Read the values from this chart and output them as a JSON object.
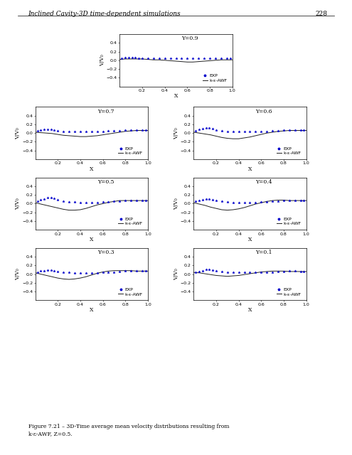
{
  "title_header": "Inclined Cavity-3D time-dependent simulations",
  "page_number": "228",
  "figure_caption": "Figure 7.21 – 3D-Time average mean velocity distributions resulting from\nk-ε-AWF, Z=0.5.",
  "ylabel": "V/V₀",
  "xlabel": "X",
  "panels": [
    {
      "label": "Y=0.9",
      "exp_x": [
        0.02,
        0.05,
        0.08,
        0.11,
        0.14,
        0.17,
        0.2,
        0.25,
        0.3,
        0.35,
        0.4,
        0.45,
        0.5,
        0.55,
        0.6,
        0.65,
        0.7,
        0.75,
        0.8,
        0.85,
        0.9,
        0.95,
        0.98
      ],
      "exp_y": [
        0.04,
        0.06,
        0.07,
        0.07,
        0.06,
        0.05,
        0.04,
        0.04,
        0.04,
        0.04,
        0.04,
        0.04,
        0.04,
        0.04,
        0.04,
        0.04,
        0.04,
        0.04,
        0.04,
        0.04,
        0.04,
        0.04,
        0.04
      ],
      "line_x": [
        0.0,
        0.05,
        0.1,
        0.15,
        0.2,
        0.25,
        0.3,
        0.35,
        0.4,
        0.45,
        0.5,
        0.55,
        0.6,
        0.65,
        0.7,
        0.75,
        0.8,
        0.85,
        0.9,
        0.95,
        1.0
      ],
      "line_y": [
        0.02,
        0.03,
        0.03,
        0.03,
        0.03,
        0.02,
        0.01,
        0.01,
        0.0,
        -0.01,
        -0.02,
        -0.03,
        -0.04,
        -0.04,
        -0.03,
        -0.02,
        -0.01,
        0.0,
        0.01,
        0.01,
        0.01
      ]
    },
    {
      "label": "Y=0.7",
      "exp_x": [
        0.02,
        0.05,
        0.08,
        0.11,
        0.14,
        0.17,
        0.2,
        0.25,
        0.3,
        0.35,
        0.4,
        0.45,
        0.5,
        0.55,
        0.6,
        0.65,
        0.7,
        0.75,
        0.8,
        0.85,
        0.9,
        0.95,
        0.98
      ],
      "exp_y": [
        0.05,
        0.07,
        0.08,
        0.09,
        0.09,
        0.07,
        0.05,
        0.04,
        0.04,
        0.04,
        0.04,
        0.04,
        0.04,
        0.04,
        0.04,
        0.05,
        0.05,
        0.06,
        0.07,
        0.07,
        0.07,
        0.07,
        0.07
      ],
      "line_x": [
        0.0,
        0.05,
        0.1,
        0.15,
        0.2,
        0.25,
        0.3,
        0.35,
        0.4,
        0.45,
        0.5,
        0.55,
        0.6,
        0.65,
        0.7,
        0.75,
        0.8,
        0.85,
        0.9,
        0.95,
        1.0
      ],
      "line_y": [
        0.02,
        0.01,
        0.0,
        -0.01,
        -0.03,
        -0.05,
        -0.06,
        -0.07,
        -0.08,
        -0.08,
        -0.07,
        -0.06,
        -0.04,
        -0.02,
        0.0,
        0.02,
        0.04,
        0.05,
        0.06,
        0.06,
        0.06
      ]
    },
    {
      "label": "Y=0.6",
      "exp_x": [
        0.02,
        0.05,
        0.08,
        0.11,
        0.14,
        0.17,
        0.2,
        0.25,
        0.3,
        0.35,
        0.4,
        0.45,
        0.5,
        0.55,
        0.6,
        0.65,
        0.7,
        0.75,
        0.8,
        0.85,
        0.9,
        0.95,
        0.98
      ],
      "exp_y": [
        0.05,
        0.08,
        0.1,
        0.12,
        0.12,
        0.1,
        0.07,
        0.05,
        0.04,
        0.04,
        0.03,
        0.03,
        0.03,
        0.04,
        0.04,
        0.04,
        0.05,
        0.06,
        0.07,
        0.07,
        0.07,
        0.07,
        0.07
      ],
      "line_x": [
        0.0,
        0.05,
        0.1,
        0.15,
        0.2,
        0.25,
        0.3,
        0.35,
        0.4,
        0.45,
        0.5,
        0.55,
        0.6,
        0.65,
        0.7,
        0.75,
        0.8,
        0.85,
        0.9,
        0.95,
        1.0
      ],
      "line_y": [
        0.02,
        0.0,
        -0.02,
        -0.04,
        -0.07,
        -0.1,
        -0.12,
        -0.13,
        -0.13,
        -0.11,
        -0.09,
        -0.06,
        -0.03,
        0.0,
        0.02,
        0.04,
        0.05,
        0.06,
        0.06,
        0.06,
        0.06
      ]
    },
    {
      "label": "Y=0.5",
      "exp_x": [
        0.02,
        0.05,
        0.08,
        0.11,
        0.14,
        0.17,
        0.2,
        0.25,
        0.3,
        0.35,
        0.4,
        0.45,
        0.5,
        0.55,
        0.6,
        0.65,
        0.7,
        0.75,
        0.8,
        0.85,
        0.9,
        0.95,
        0.98
      ],
      "exp_y": [
        0.05,
        0.08,
        0.11,
        0.14,
        0.14,
        0.12,
        0.09,
        0.06,
        0.04,
        0.04,
        0.03,
        0.03,
        0.03,
        0.03,
        0.04,
        0.04,
        0.05,
        0.06,
        0.07,
        0.07,
        0.07,
        0.07,
        0.07
      ],
      "line_x": [
        0.0,
        0.05,
        0.1,
        0.15,
        0.2,
        0.25,
        0.3,
        0.35,
        0.4,
        0.45,
        0.5,
        0.55,
        0.6,
        0.65,
        0.7,
        0.75,
        0.8,
        0.85,
        0.9,
        0.95,
        1.0
      ],
      "line_y": [
        0.02,
        -0.01,
        -0.04,
        -0.07,
        -0.1,
        -0.13,
        -0.15,
        -0.15,
        -0.14,
        -0.11,
        -0.07,
        -0.03,
        0.0,
        0.03,
        0.05,
        0.07,
        0.07,
        0.07,
        0.07,
        0.07,
        0.07
      ]
    },
    {
      "label": "Y=0.4",
      "exp_x": [
        0.02,
        0.05,
        0.08,
        0.11,
        0.14,
        0.17,
        0.2,
        0.25,
        0.3,
        0.35,
        0.4,
        0.45,
        0.5,
        0.55,
        0.6,
        0.65,
        0.7,
        0.75,
        0.8,
        0.85,
        0.9,
        0.95,
        0.98
      ],
      "exp_y": [
        0.05,
        0.07,
        0.09,
        0.11,
        0.11,
        0.09,
        0.07,
        0.05,
        0.04,
        0.03,
        0.03,
        0.03,
        0.03,
        0.03,
        0.04,
        0.04,
        0.05,
        0.06,
        0.07,
        0.07,
        0.07,
        0.07,
        0.07
      ],
      "line_x": [
        0.0,
        0.05,
        0.1,
        0.15,
        0.2,
        0.25,
        0.3,
        0.35,
        0.4,
        0.45,
        0.5,
        0.55,
        0.6,
        0.65,
        0.7,
        0.75,
        0.8,
        0.85,
        0.9,
        0.95,
        1.0
      ],
      "line_y": [
        0.02,
        -0.01,
        -0.04,
        -0.08,
        -0.11,
        -0.14,
        -0.15,
        -0.14,
        -0.12,
        -0.09,
        -0.05,
        -0.01,
        0.02,
        0.05,
        0.07,
        0.08,
        0.08,
        0.07,
        0.07,
        0.07,
        0.07
      ]
    },
    {
      "label": "Y=0.3",
      "exp_x": [
        0.02,
        0.05,
        0.08,
        0.11,
        0.14,
        0.17,
        0.2,
        0.25,
        0.3,
        0.35,
        0.4,
        0.45,
        0.5,
        0.55,
        0.6,
        0.65,
        0.7,
        0.75,
        0.8,
        0.85,
        0.9,
        0.95,
        0.98
      ],
      "exp_y": [
        0.05,
        0.07,
        0.08,
        0.09,
        0.09,
        0.07,
        0.06,
        0.04,
        0.04,
        0.03,
        0.03,
        0.03,
        0.03,
        0.03,
        0.04,
        0.04,
        0.05,
        0.06,
        0.07,
        0.07,
        0.07,
        0.07,
        0.07
      ],
      "line_x": [
        0.0,
        0.05,
        0.1,
        0.15,
        0.2,
        0.25,
        0.3,
        0.35,
        0.4,
        0.45,
        0.5,
        0.55,
        0.6,
        0.65,
        0.7,
        0.75,
        0.8,
        0.85,
        0.9,
        0.95,
        1.0
      ],
      "line_y": [
        0.03,
        0.0,
        -0.03,
        -0.06,
        -0.09,
        -0.11,
        -0.12,
        -0.11,
        -0.09,
        -0.06,
        -0.02,
        0.02,
        0.05,
        0.07,
        0.08,
        0.08,
        0.08,
        0.08,
        0.07,
        0.07,
        0.07
      ]
    },
    {
      "label": "Y=0.1",
      "exp_x": [
        0.02,
        0.05,
        0.08,
        0.11,
        0.14,
        0.17,
        0.2,
        0.25,
        0.3,
        0.35,
        0.4,
        0.45,
        0.5,
        0.55,
        0.6,
        0.65,
        0.7,
        0.75,
        0.8,
        0.85,
        0.9,
        0.95,
        0.98
      ],
      "exp_y": [
        0.04,
        0.06,
        0.08,
        0.1,
        0.1,
        0.09,
        0.08,
        0.06,
        0.05,
        0.04,
        0.04,
        0.04,
        0.04,
        0.04,
        0.04,
        0.05,
        0.05,
        0.06,
        0.06,
        0.07,
        0.07,
        0.06,
        0.06
      ],
      "line_x": [
        0.0,
        0.05,
        0.1,
        0.15,
        0.2,
        0.25,
        0.3,
        0.35,
        0.4,
        0.45,
        0.5,
        0.55,
        0.6,
        0.65,
        0.7,
        0.75,
        0.8,
        0.85,
        0.9,
        0.95,
        1.0
      ],
      "line_y": [
        0.04,
        0.03,
        0.01,
        -0.01,
        -0.03,
        -0.04,
        -0.05,
        -0.04,
        -0.03,
        -0.01,
        0.01,
        0.03,
        0.05,
        0.06,
        0.07,
        0.07,
        0.07,
        0.06,
        0.06,
        0.06,
        0.06
      ]
    }
  ],
  "xlim": [
    0,
    1
  ],
  "ylim": [
    -0.6,
    0.6
  ],
  "yticks": [
    -0.4,
    -0.2,
    0.0,
    0.2,
    0.4
  ],
  "xticks": [
    0.2,
    0.4,
    0.6,
    0.8,
    1.0
  ],
  "exp_color": "#0000cc",
  "line_color": "#222222",
  "exp_marker": "*",
  "exp_markersize": 2.5,
  "legend_exp": "EXP",
  "legend_line": "k-ε-AWF",
  "tick_fontsize": 4.5,
  "label_fontsize": 5.5,
  "panel_label_fontsize": 5.5,
  "legend_fontsize": 4.5
}
